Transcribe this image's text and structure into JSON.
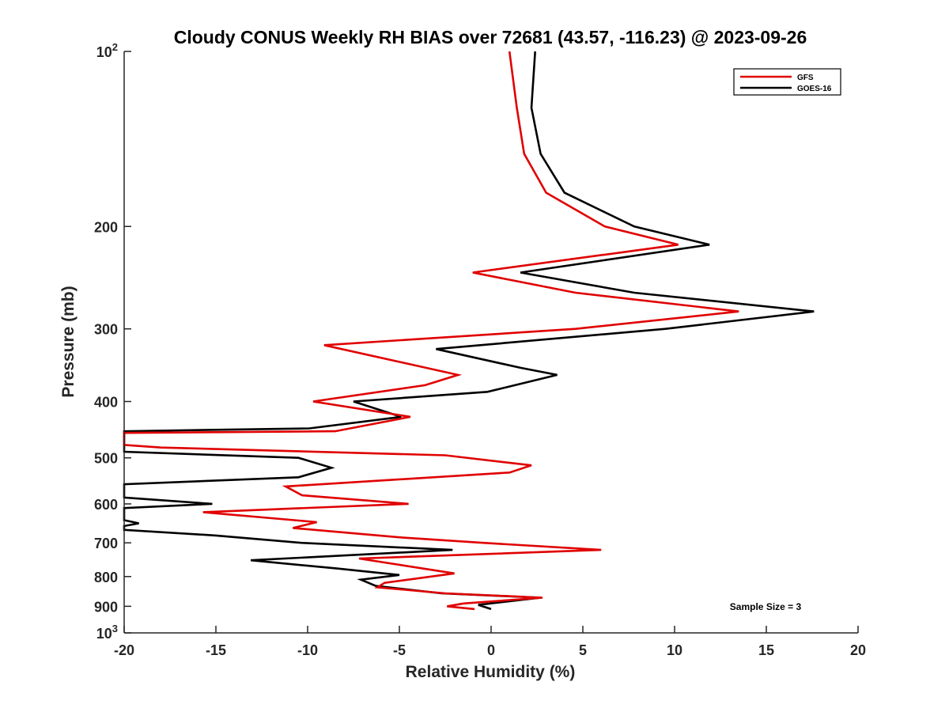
{
  "chart_data": {
    "type": "line",
    "title": "Cloudy CONUS Weekly RH BIAS over 72681 (43.57, -116.23) @ 2023-09-26",
    "xlabel": "Relative Humidity (%)",
    "ylabel": "Pressure (mb)",
    "xlim": [
      -20,
      20
    ],
    "ylim": [
      100,
      1000
    ],
    "yscale": "log",
    "y_reversed": true,
    "grid": false,
    "legend_position": "top-right",
    "x_ticks": [
      "-20",
      "-15",
      "-10",
      "-5",
      "0",
      "5",
      "10",
      "15",
      "20"
    ],
    "y_ticks": [
      {
        "value": 100,
        "base": "10",
        "exp": "2"
      },
      {
        "value": 200,
        "label": "200"
      },
      {
        "value": 300,
        "label": "300"
      },
      {
        "value": 400,
        "label": "400"
      },
      {
        "value": 500,
        "label": "500"
      },
      {
        "value": 600,
        "label": "600"
      },
      {
        "value": 700,
        "label": "700"
      },
      {
        "value": 800,
        "label": "800"
      },
      {
        "value": 900,
        "label": "900"
      },
      {
        "value": 1000,
        "base": "10",
        "exp": "3"
      }
    ],
    "annotation": "Sample Size = 3",
    "series": [
      {
        "name": "GFS",
        "color": "#e00000",
        "points": [
          [
            1.0,
            100
          ],
          [
            1.4,
            125
          ],
          [
            1.8,
            150
          ],
          [
            3.0,
            175
          ],
          [
            6.2,
            200
          ],
          [
            10.2,
            215
          ],
          [
            -1.0,
            240
          ],
          [
            4.6,
            260
          ],
          [
            13.5,
            280
          ],
          [
            4.6,
            300
          ],
          [
            -9.1,
            320
          ],
          [
            -1.8,
            360
          ],
          [
            -3.6,
            375
          ],
          [
            -9.7,
            400
          ],
          [
            -4.4,
            425
          ],
          [
            -8.5,
            450
          ],
          [
            -20,
            453
          ],
          [
            -20,
            475
          ],
          [
            -18,
            480
          ],
          [
            -2.5,
            495
          ],
          [
            2.2,
            515
          ],
          [
            1.0,
            530
          ],
          [
            -11.2,
            560
          ],
          [
            -10.3,
            580
          ],
          [
            -4.5,
            600
          ],
          [
            -15.7,
            620
          ],
          [
            -9.5,
            645
          ],
          [
            -10.8,
            660
          ],
          [
            -5,
            685
          ],
          [
            -0.5,
            700
          ],
          [
            6.0,
            720
          ],
          [
            -7.2,
            745
          ],
          [
            -2,
            790
          ],
          [
            -5.8,
            820
          ],
          [
            -6.2,
            835
          ],
          [
            -2.5,
            855
          ],
          [
            2.8,
            870
          ],
          [
            -1.5,
            890
          ],
          [
            -2.4,
            900
          ],
          [
            -0.9,
            910
          ]
        ]
      },
      {
        "name": "GOES-16",
        "color": "#000000",
        "points": [
          [
            2.4,
            100
          ],
          [
            2.2,
            125
          ],
          [
            2.7,
            150
          ],
          [
            4.0,
            175
          ],
          [
            7.8,
            200
          ],
          [
            11.9,
            215
          ],
          [
            1.6,
            240
          ],
          [
            7.8,
            260
          ],
          [
            17.6,
            280
          ],
          [
            9.5,
            300
          ],
          [
            -3,
            325
          ],
          [
            1.6,
            350
          ],
          [
            3.6,
            360
          ],
          [
            -0.2,
            385
          ],
          [
            -7.5,
            400
          ],
          [
            -4.9,
            425
          ],
          [
            -9.9,
            445
          ],
          [
            -20,
            450
          ],
          [
            -20,
            488
          ],
          [
            -10.5,
            500
          ],
          [
            -8.7,
            520
          ],
          [
            -10.5,
            540
          ],
          [
            -20,
            555
          ],
          [
            -20,
            585
          ],
          [
            -15.2,
            600
          ],
          [
            -20,
            610
          ],
          [
            -20,
            640
          ],
          [
            -19.2,
            648
          ],
          [
            -20,
            655
          ],
          [
            -20,
            665
          ],
          [
            -15,
            680
          ],
          [
            -10.4,
            700
          ],
          [
            -2.1,
            720
          ],
          [
            -13.1,
            750
          ],
          [
            -8.4,
            775
          ],
          [
            -5.0,
            795
          ],
          [
            -7.1,
            810
          ],
          [
            -6.3,
            830
          ],
          [
            -2.7,
            855
          ],
          [
            2.7,
            870
          ],
          [
            -0.7,
            895
          ],
          [
            0.0,
            910
          ]
        ]
      }
    ]
  }
}
